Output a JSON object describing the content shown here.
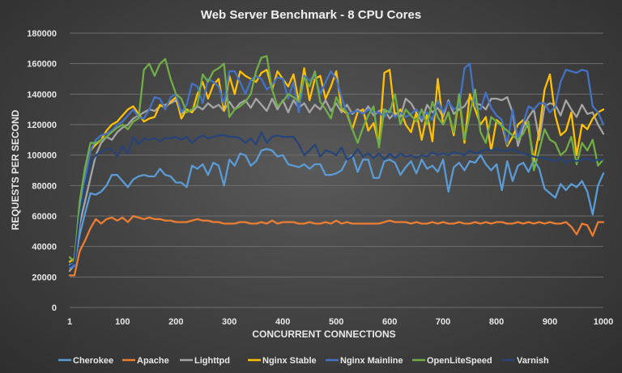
{
  "chart_data": {
    "type": "line",
    "title": "Web Server Benchmark - 8 CPU Cores",
    "xlabel": "CONCURRENT CONNECTIONS",
    "ylabel": "REQUESTS PER SECOND",
    "xlim": [
      1,
      1000
    ],
    "ylim": [
      0,
      180000
    ],
    "x_ticks": [
      1,
      100,
      200,
      300,
      400,
      500,
      600,
      700,
      800,
      900,
      1000
    ],
    "y_ticks": [
      0,
      20000,
      40000,
      60000,
      80000,
      100000,
      120000,
      140000,
      160000,
      180000
    ],
    "y_tick_labels": [
      "0",
      "20000",
      "40000",
      "60000",
      "80000",
      "100000",
      "120000",
      "140000",
      "160000",
      "180000"
    ],
    "grid": "horizontal",
    "legend_position": "bottom",
    "x": [
      1,
      10,
      20,
      30,
      40,
      50,
      60,
      70,
      80,
      90,
      100,
      110,
      120,
      130,
      140,
      150,
      160,
      170,
      180,
      190,
      200,
      210,
      220,
      230,
      240,
      250,
      260,
      270,
      280,
      290,
      300,
      310,
      320,
      330,
      340,
      350,
      360,
      370,
      380,
      390,
      400,
      410,
      420,
      430,
      440,
      450,
      460,
      470,
      480,
      490,
      500,
      510,
      520,
      530,
      540,
      550,
      560,
      570,
      580,
      590,
      600,
      610,
      620,
      630,
      640,
      650,
      660,
      670,
      680,
      690,
      700,
      710,
      720,
      730,
      740,
      750,
      760,
      770,
      780,
      790,
      800,
      810,
      820,
      830,
      840,
      850,
      860,
      870,
      880,
      890,
      900,
      910,
      920,
      930,
      940,
      950,
      960,
      970,
      980,
      990,
      1000
    ],
    "series": [
      {
        "name": "Cherokee",
        "color": "#5b9bd5",
        "values": [
          28000,
          29000,
          48000,
          62000,
          75000,
          74000,
          76000,
          80000,
          87000,
          87000,
          83000,
          79000,
          84000,
          86000,
          87000,
          86000,
          86000,
          91000,
          87000,
          86000,
          82000,
          82000,
          79000,
          93000,
          91000,
          94000,
          87000,
          95000,
          93000,
          80000,
          97000,
          93000,
          101000,
          100000,
          93000,
          96000,
          103000,
          104000,
          103000,
          99000,
          100000,
          94000,
          93000,
          92000,
          94000,
          91000,
          94000,
          94000,
          87000,
          87000,
          88000,
          90000,
          97000,
          100000,
          89000,
          97000,
          97000,
          85000,
          85000,
          96000,
          97000,
          95000,
          87000,
          92000,
          96000,
          88000,
          97000,
          91000,
          93000,
          89000,
          97000,
          76000,
          92000,
          95000,
          90000,
          96000,
          95000,
          100000,
          94000,
          90000,
          94000,
          77000,
          96000,
          83000,
          93000,
          95000,
          89000,
          97000,
          91000,
          78000,
          75000,
          72000,
          81000,
          77000,
          81000,
          79000,
          83000,
          76000,
          61000,
          80000,
          88000
        ]
      },
      {
        "name": "Apache",
        "color": "#ed7d31",
        "values": [
          21000,
          21000,
          37000,
          44000,
          52000,
          58000,
          55000,
          58000,
          59000,
          57000,
          59000,
          56000,
          60000,
          59000,
          58000,
          59000,
          58000,
          58000,
          57000,
          57000,
          56000,
          56000,
          56000,
          57000,
          58000,
          57000,
          57000,
          56000,
          56000,
          55000,
          55000,
          55000,
          56000,
          56000,
          55000,
          55000,
          56000,
          55000,
          57000,
          55000,
          56000,
          56000,
          56000,
          55000,
          55000,
          56000,
          55000,
          55000,
          56000,
          55000,
          57000,
          55000,
          56000,
          55000,
          55000,
          55000,
          55000,
          55000,
          55000,
          56000,
          57000,
          56000,
          56000,
          56000,
          55000,
          56000,
          55000,
          55000,
          56000,
          55000,
          56000,
          55000,
          55000,
          56000,
          55000,
          55000,
          56000,
          55000,
          56000,
          55000,
          56000,
          56000,
          55000,
          55000,
          56000,
          55000,
          56000,
          55000,
          56000,
          55000,
          56000,
          55000,
          55000,
          56000,
          53000,
          48000,
          55000,
          54000,
          47000,
          56000,
          56000
        ]
      },
      {
        "name": "Lighttpd",
        "color": "#a5a5a5",
        "values": [
          24000,
          28000,
          55000,
          70000,
          85000,
          100000,
          108000,
          112000,
          110000,
          115000,
          118000,
          120000,
          124000,
          126000,
          128000,
          130000,
          129000,
          132000,
          133000,
          134000,
          136000,
          127000,
          130000,
          128000,
          132000,
          130000,
          134000,
          131000,
          133000,
          129000,
          135000,
          130000,
          134000,
          136000,
          131000,
          137000,
          133000,
          129000,
          137000,
          130000,
          136000,
          128000,
          136000,
          131000,
          134000,
          128000,
          133000,
          130000,
          136000,
          129000,
          134000,
          128000,
          133000,
          127000,
          130000,
          127000,
          132000,
          126000,
          129000,
          130000,
          124000,
          128000,
          125000,
          137000,
          134000,
          128000,
          122000,
          133000,
          128000,
          131000,
          125000,
          136000,
          127000,
          130000,
          132000,
          138000,
          134000,
          133000,
          130000,
          137000,
          137000,
          136000,
          138000,
          128000,
          106000,
          118000,
          125000,
          130000,
          110000,
          132000,
          134000,
          133000,
          126000,
          136000,
          130000,
          125000,
          133000,
          127000,
          128000,
          120000,
          114000
        ]
      },
      {
        "name": "Nginx Stable",
        "color": "#ffc000",
        "values": [
          30000,
          32000,
          64000,
          88000,
          103000,
          107000,
          110000,
          116000,
          120000,
          122000,
          126000,
          130000,
          132000,
          127000,
          122000,
          124000,
          125000,
          133000,
          131000,
          135000,
          138000,
          124000,
          130000,
          128000,
          140000,
          148000,
          137000,
          146000,
          150000,
          129000,
          152000,
          140000,
          155000,
          152000,
          150000,
          148000,
          154000,
          156000,
          143000,
          155000,
          150000,
          145000,
          153000,
          135000,
          157000,
          136000,
          150000,
          152000,
          137000,
          145000,
          155000,
          130000,
          127000,
          117000,
          128000,
          130000,
          116000,
          121000,
          107000,
          154000,
          156000,
          125000,
          130000,
          120000,
          115000,
          128000,
          110000,
          127000,
          109000,
          150000,
          120000,
          128000,
          113000,
          138000,
          108000,
          140000,
          130000,
          120000,
          125000,
          103000,
          123000,
          120000,
          106000,
          112000,
          120000,
          123000,
          118000,
          96000,
          116000,
          143000,
          153000,
          126000,
          113000,
          116000,
          128000,
          100000,
          120000,
          117000,
          124000,
          128000,
          130000
        ]
      },
      {
        "name": "Nginx Mainline",
        "color": "#4472c4",
        "values": [
          26000,
          27000,
          61000,
          85000,
          103000,
          110000,
          113000,
          114000,
          116000,
          120000,
          122000,
          126000,
          130000,
          125000,
          124000,
          130000,
          138000,
          137000,
          130000,
          138000,
          140000,
          128000,
          133000,
          147000,
          145000,
          134000,
          150000,
          148000,
          145000,
          133000,
          155000,
          155000,
          148000,
          140000,
          149000,
          152000,
          150000,
          143000,
          146000,
          151000,
          150000,
          137000,
          148000,
          128000,
          152000,
          149000,
          152000,
          140000,
          148000,
          155000,
          150000,
          138000,
          127000,
          128000,
          129000,
          127000,
          130000,
          128000,
          128000,
          125000,
          130000,
          125000,
          128000,
          125000,
          127000,
          130000,
          124000,
          128000,
          123000,
          136000,
          128000,
          135000,
          130000,
          132000,
          157000,
          160000,
          132000,
          130000,
          141000,
          131000,
          126000,
          123000,
          107000,
          130000,
          111000,
          121000,
          132000,
          130000,
          134000,
          134000,
          128000,
          132000,
          148000,
          156000,
          155000,
          154000,
          156000,
          155000,
          132000,
          128000,
          120000
        ]
      },
      {
        "name": "OpenLiteSpeed",
        "color": "#70ad47",
        "values": [
          33000,
          30000,
          70000,
          92000,
          108000,
          108000,
          110000,
          112000,
          115000,
          118000,
          120000,
          117000,
          122000,
          124000,
          156000,
          160000,
          152000,
          160000,
          163000,
          150000,
          140000,
          137000,
          128000,
          130000,
          133000,
          153000,
          148000,
          155000,
          157000,
          160000,
          125000,
          130000,
          132000,
          135000,
          140000,
          155000,
          164000,
          165000,
          143000,
          132000,
          135000,
          140000,
          138000,
          135000,
          151000,
          145000,
          155000,
          135000,
          130000,
          124000,
          138000,
          131000,
          128000,
          117000,
          108000,
          118000,
          126000,
          132000,
          105000,
          130000,
          128000,
          140000,
          120000,
          130000,
          126000,
          122000,
          130000,
          120000,
          135000,
          125000,
          120000,
          128000,
          115000,
          140000,
          110000,
          127000,
          143000,
          115000,
          108000,
          125000,
          122000,
          119000,
          116000,
          113000,
          110000,
          114000,
          122000,
          90000,
          103000,
          117000,
          110000,
          108000,
          100000,
          103000,
          112000,
          94000,
          108000,
          103000,
          110000,
          93000,
          97000
        ]
      },
      {
        "name": "Varnish",
        "color": "#264478",
        "values": [
          27000,
          29000,
          60000,
          80000,
          95000,
          100000,
          102000,
          104000,
          104000,
          99000,
          106000,
          101000,
          112000,
          107000,
          111000,
          110000,
          111000,
          109000,
          111000,
          111000,
          112000,
          110000,
          112000,
          108000,
          111000,
          113000,
          111000,
          112000,
          113000,
          113000,
          112000,
          112000,
          111000,
          108000,
          111000,
          107000,
          115000,
          108000,
          112000,
          113000,
          112000,
          112000,
          112000,
          107000,
          100000,
          103000,
          107000,
          99000,
          103000,
          102000,
          100000,
          105000,
          97000,
          99000,
          104000,
          99000,
          101000,
          98000,
          101000,
          97000,
          101000,
          98000,
          101000,
          99000,
          100000,
          98000,
          100000,
          99000,
          102000,
          100000,
          101000,
          100000,
          102000,
          101000,
          100000,
          103000,
          101000,
          102000,
          104000,
          103000,
          104000,
          103000,
          103000,
          104000,
          102000,
          101000,
          100000,
          99000,
          98000,
          98000,
          97000,
          96000,
          98000,
          95000,
          97000,
          96000,
          97000,
          98000,
          96000,
          97000,
          97000
        ]
      }
    ]
  }
}
